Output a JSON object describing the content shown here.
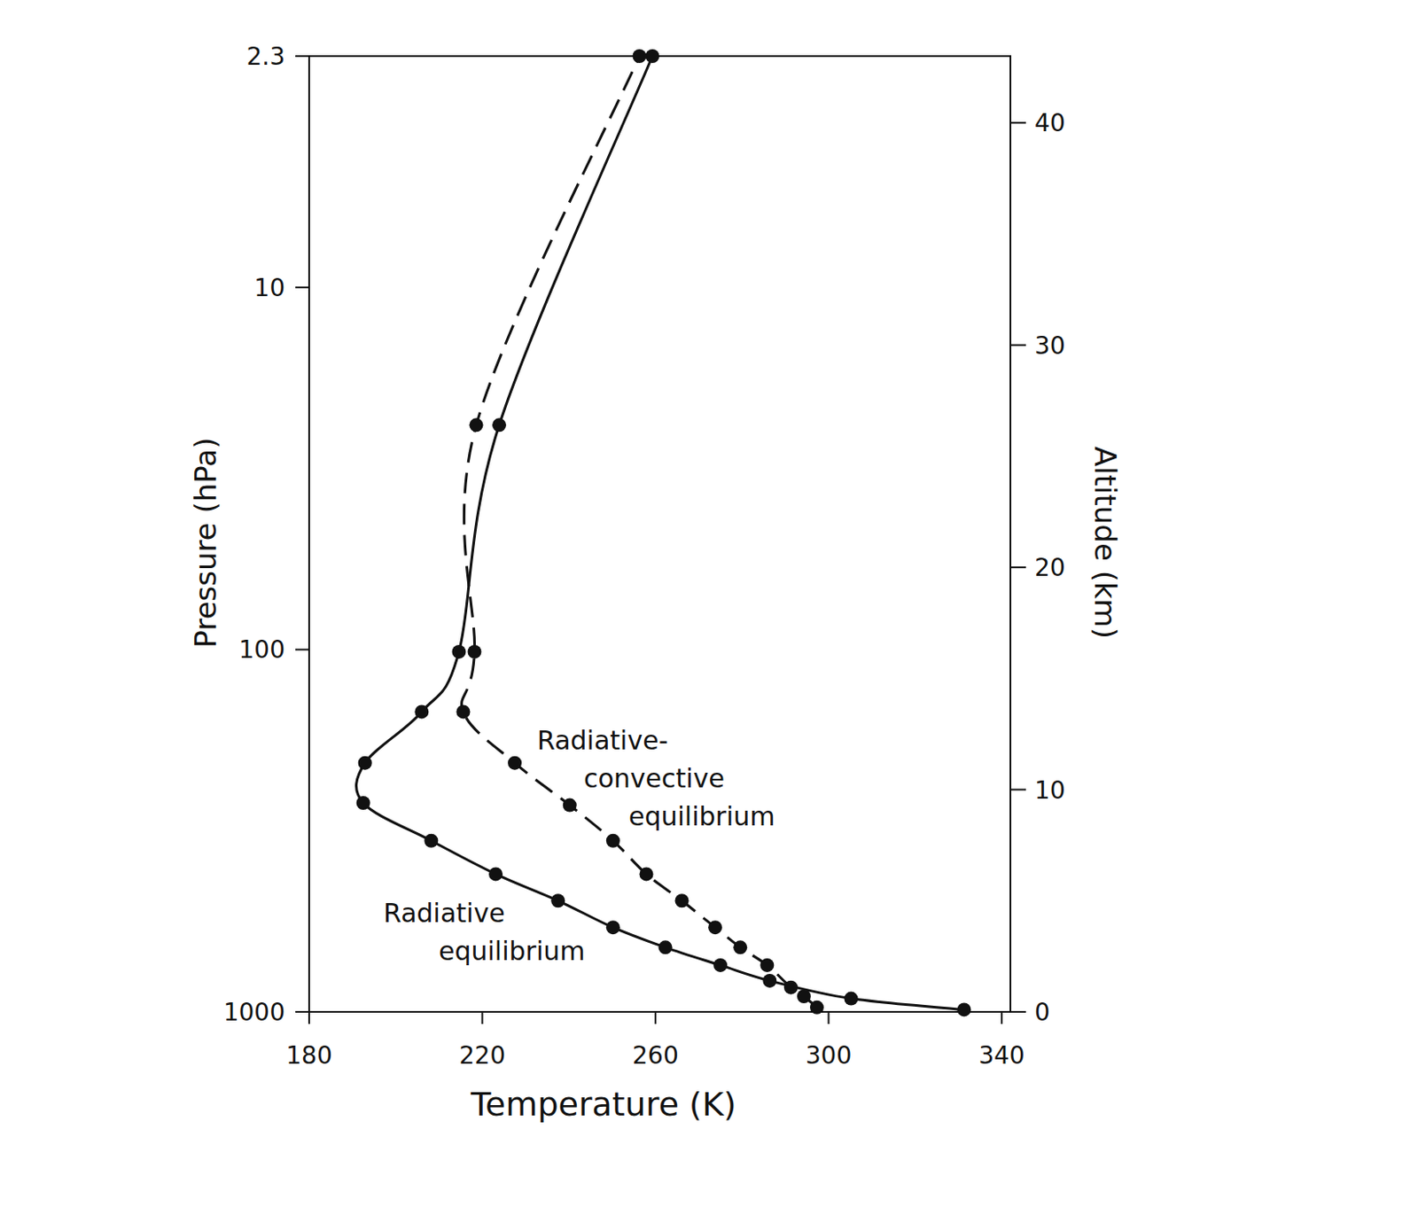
{
  "chart_data": {
    "type": "line",
    "x_label": "Temperature (K)",
    "y_label": "Pressure (hPa)",
    "y2_label": "Altitude (km)",
    "xlim": [
      180,
      342
    ],
    "xticks": [
      180,
      220,
      260,
      300,
      340
    ],
    "ylim": [
      1000,
      2.3
    ],
    "yticks": [
      1000,
      100,
      10,
      2.3
    ],
    "log": "y",
    "y2lim": [
      0,
      43
    ],
    "y2ticks": [
      0,
      10,
      20,
      30,
      40
    ],
    "series": [
      {
        "name": "Radiative equilibrium",
        "axis": "y2",
        "color": "#111111",
        "line_style": "solid",
        "marker": "circle",
        "x": [
          331.3,
          305.2,
          286.4,
          275.0,
          262.3,
          250.2,
          237.5,
          223.1,
          208.2,
          192.5,
          192.9,
          206.0,
          214.6,
          223.9,
          259.3
        ],
        "values": [
          0.1,
          0.6,
          1.4,
          2.1,
          2.9,
          3.8,
          5.0,
          6.2,
          7.7,
          9.4,
          11.2,
          13.5,
          16.2,
          26.4,
          43
        ]
      },
      {
        "name": "Radiative-convective equilibrium",
        "axis": "y2",
        "color": "#111111",
        "line_style": "dashed",
        "marker": "circle",
        "x": [
          297.3,
          294.3,
          291.3,
          285.8,
          279.6,
          273.8,
          266.1,
          257.9,
          250.2,
          240.2,
          227.5,
          215.6,
          218.2,
          218.6,
          256.3
        ],
        "values": [
          0.2,
          0.7,
          1.1,
          2.1,
          2.9,
          3.8,
          5.0,
          6.2,
          7.7,
          9.3,
          11.2,
          13.5,
          16.2,
          26.4,
          43
        ]
      }
    ]
  }
}
